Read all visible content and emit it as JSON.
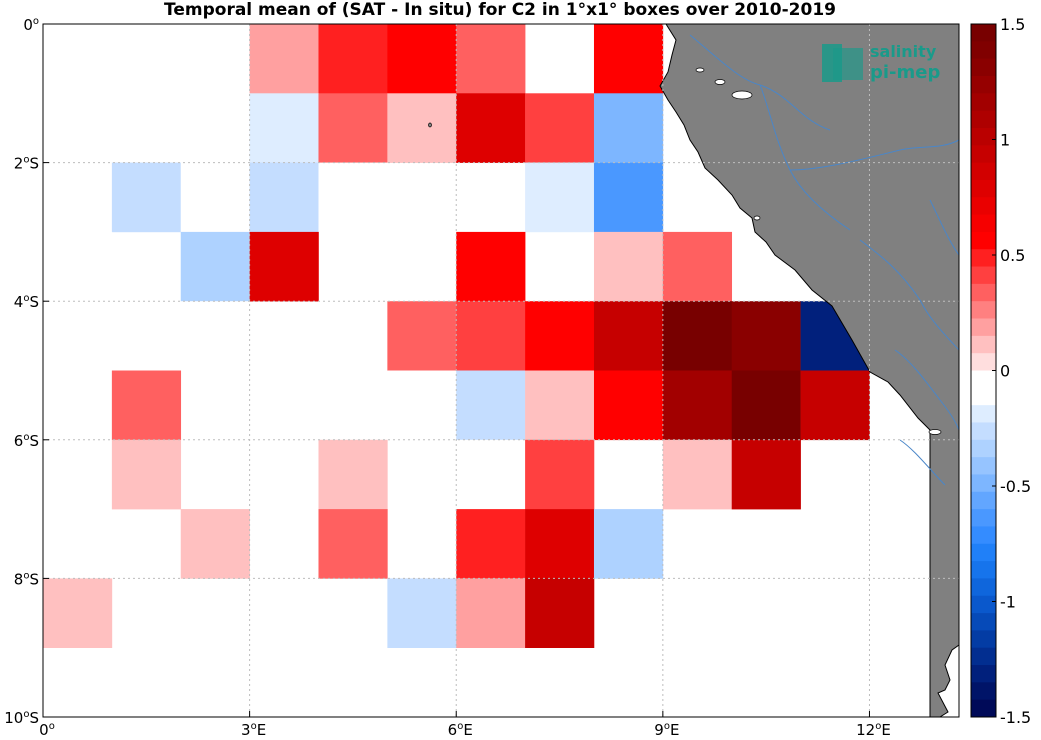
{
  "title": "Temporal mean of (SAT - In situ) for C2 in 1°x1° boxes over 2010-2019",
  "logo": {
    "line1": "salinity",
    "line2": "pi-mep",
    "color": "#1a9a8a"
  },
  "map": {
    "lon_range": [
      0,
      13.3
    ],
    "lat_range": [
      -10,
      0
    ],
    "grid": true,
    "land_color": "#808080",
    "river_color": "#4a86c8",
    "x_ticks": [
      {
        "value": 0,
        "num": "0",
        "sup": "o",
        "hemi": ""
      },
      {
        "value": 3,
        "num": "3",
        "sup": "o",
        "hemi": "E"
      },
      {
        "value": 6,
        "num": "6",
        "sup": "o",
        "hemi": "E"
      },
      {
        "value": 9,
        "num": "9",
        "sup": "o",
        "hemi": "E"
      },
      {
        "value": 12,
        "num": "12",
        "sup": "o",
        "hemi": "E"
      }
    ],
    "y_ticks": [
      {
        "value": 0,
        "num": "0",
        "sup": "o",
        "hemi": ""
      },
      {
        "value": -2,
        "num": "2",
        "sup": "o",
        "hemi": "S"
      },
      {
        "value": -4,
        "num": "4",
        "sup": "o",
        "hemi": "S"
      },
      {
        "value": -6,
        "num": "6",
        "sup": "o",
        "hemi": "S"
      },
      {
        "value": -8,
        "num": "8",
        "sup": "o",
        "hemi": "S"
      },
      {
        "value": -10,
        "num": "10",
        "sup": "o",
        "hemi": "S"
      }
    ]
  },
  "chart_data": {
    "type": "heatmap",
    "title": "Temporal mean of (SAT - In situ) for C2 in 1°x1° boxes over 2010-2019",
    "xlabel": "",
    "ylabel": "",
    "clim": [
      -1.5,
      1.5
    ],
    "cells": [
      {
        "lon": 3,
        "lat": 0,
        "value": 0.2
      },
      {
        "lon": 4,
        "lat": 0,
        "value": 0.5
      },
      {
        "lon": 5,
        "lat": 0,
        "value": 0.55
      },
      {
        "lon": 6,
        "lat": 0,
        "value": 0.3
      },
      {
        "lon": 8,
        "lat": 0,
        "value": 0.6
      },
      {
        "lon": 3,
        "lat": -1,
        "value": -0.2
      },
      {
        "lon": 4,
        "lat": -1,
        "value": 0.35
      },
      {
        "lon": 5,
        "lat": -1,
        "value": 0.15
      },
      {
        "lon": 6,
        "lat": -1,
        "value": 0.8
      },
      {
        "lon": 7,
        "lat": -1,
        "value": 0.4
      },
      {
        "lon": 8,
        "lat": -1,
        "value": -0.45
      },
      {
        "lon": 1,
        "lat": -2,
        "value": -0.25
      },
      {
        "lon": 2,
        "lat": -2,
        "value": -0.15
      },
      {
        "lon": 3,
        "lat": -2,
        "value": -0.25
      },
      {
        "lon": 4,
        "lat": -2,
        "value": -0.15
      },
      {
        "lon": 7,
        "lat": -2,
        "value": -0.2
      },
      {
        "lon": 8,
        "lat": -2,
        "value": -0.6
      },
      {
        "lon": 0,
        "lat": -3,
        "value": -0.1
      },
      {
        "lon": 2,
        "lat": -3,
        "value": -0.35
      },
      {
        "lon": 3,
        "lat": -3,
        "value": 0.8
      },
      {
        "lon": 6,
        "lat": -3,
        "value": 0.6
      },
      {
        "lon": 8,
        "lat": -3,
        "value": 0.15
      },
      {
        "lon": 9,
        "lat": -3,
        "value": 0.3
      },
      {
        "lon": 2,
        "lat": -4,
        "value": -0.15
      },
      {
        "lon": 5,
        "lat": -4,
        "value": 0.35
      },
      {
        "lon": 6,
        "lat": -4,
        "value": 0.45
      },
      {
        "lon": 7,
        "lat": -4,
        "value": 0.6
      },
      {
        "lon": 8,
        "lat": -4,
        "value": 0.95
      },
      {
        "lon": 9,
        "lat": -4,
        "value": 1.45
      },
      {
        "lon": 10,
        "lat": -4,
        "value": 1.3
      },
      {
        "lon": 11,
        "lat": -4,
        "value": -1.3
      },
      {
        "lon": 1,
        "lat": -5,
        "value": 0.3
      },
      {
        "lon": 5,
        "lat": -5,
        "value": -0.1
      },
      {
        "lon": 6,
        "lat": -5,
        "value": -0.25
      },
      {
        "lon": 7,
        "lat": -5,
        "value": 0.15
      },
      {
        "lon": 8,
        "lat": -5,
        "value": 0.6
      },
      {
        "lon": 9,
        "lat": -5,
        "value": 1.2
      },
      {
        "lon": 10,
        "lat": -5,
        "value": 1.45
      },
      {
        "lon": 11,
        "lat": -5,
        "value": 0.9
      },
      {
        "lon": 1,
        "lat": -6,
        "value": 0.15
      },
      {
        "lon": 3,
        "lat": -6,
        "value": -0.1
      },
      {
        "lon": 4,
        "lat": -6,
        "value": 0.15
      },
      {
        "lon": 6,
        "lat": -6,
        "value": -0.1
      },
      {
        "lon": 7,
        "lat": -6,
        "value": 0.4
      },
      {
        "lon": 9,
        "lat": -6,
        "value": 0.15
      },
      {
        "lon": 10,
        "lat": -6,
        "value": 0.95
      },
      {
        "lon": 2,
        "lat": -7,
        "value": 0.15
      },
      {
        "lon": 4,
        "lat": -7,
        "value": 0.3
      },
      {
        "lon": 6,
        "lat": -7,
        "value": 0.5
      },
      {
        "lon": 7,
        "lat": -7,
        "value": 0.8
      },
      {
        "lon": 8,
        "lat": -7,
        "value": -0.35
      },
      {
        "lon": 0,
        "lat": -8,
        "value": 0.15
      },
      {
        "lon": 5,
        "lat": -8,
        "value": -0.25
      },
      {
        "lon": 6,
        "lat": -8,
        "value": 0.2
      },
      {
        "lon": 7,
        "lat": -8,
        "value": 0.95
      }
    ]
  },
  "colorbar": {
    "ticks": [
      {
        "value": 1.5,
        "label": "1.5"
      },
      {
        "value": 1,
        "label": "1"
      },
      {
        "value": 0.5,
        "label": "0.5"
      },
      {
        "value": 0,
        "label": "0"
      },
      {
        "value": -0.5,
        "label": "-0.5"
      },
      {
        "value": -1,
        "label": "-1"
      },
      {
        "value": -1.5,
        "label": "-1.5"
      }
    ],
    "colors_top_to_bottom": [
      "#780000",
      "#800000",
      "#8a0000",
      "#960000",
      "#a20000",
      "#ae0000",
      "#ba0000",
      "#c60000",
      "#d20000",
      "#de0000",
      "#ea0000",
      "#f60000",
      "#ff0000",
      "#ff2020",
      "#ff4040",
      "#ff6060",
      "#ff8080",
      "#ffa0a0",
      "#ffc0c0",
      "#ffdede",
      "#ffffff",
      "#ffffff",
      "#deedff",
      "#c4ddff",
      "#aed2ff",
      "#96c4ff",
      "#7db6ff",
      "#62a6ff",
      "#4a98ff",
      "#348cff",
      "#2080f8",
      "#1674ec",
      "#0f66dc",
      "#0a58cc",
      "#064ab8",
      "#033ca4",
      "#022e90",
      "#01207c",
      "#001468",
      "#000a58"
    ]
  }
}
